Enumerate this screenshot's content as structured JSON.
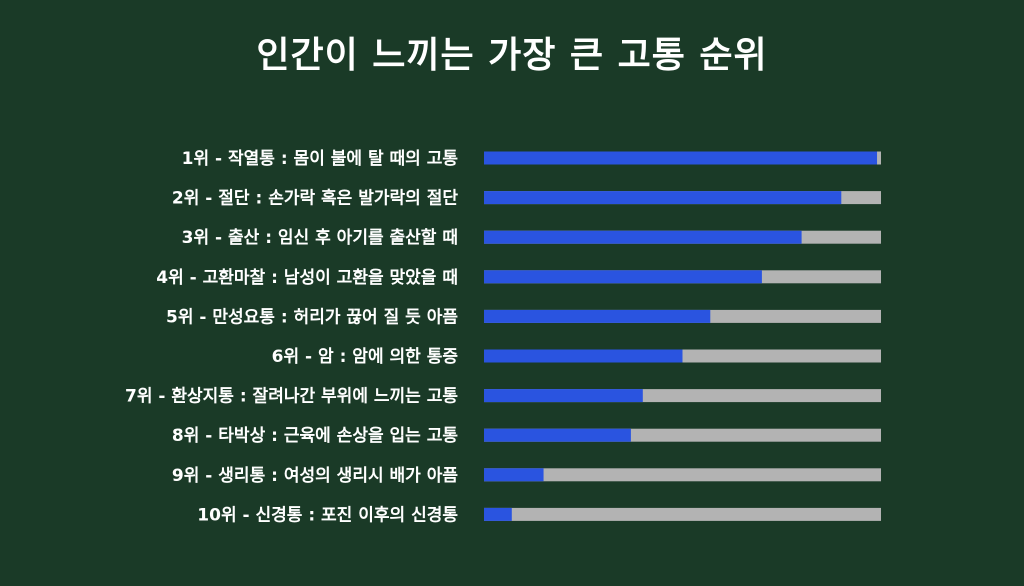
{
  "chart_data": {
    "type": "bar",
    "orientation": "horizontal",
    "title": "인간이 느끼는 가장 큰 고통 순위",
    "xlim": [
      0,
      100
    ],
    "grid": false,
    "categories": [
      "1위 - 작열통 : 몸이 불에 탈 때의 고통",
      "2위 - 절단 : 손가락 혹은 발가락의 절단",
      "3위 - 출산 : 임신 후 아기를 출산할 때",
      "4위 - 고환마찰 : 남성이 고환을 맞았을 때",
      "5위 - 만성요통 : 허리가 끊어 질 듯 아픔",
      "6위 - 암 : 암에 의한 통증",
      "7위 - 환상지통 : 잘려나간 부위에 느끼는 고통",
      "8위 - 타박상 : 근육에 손상을 입는 고통",
      "9위 - 생리통 : 여성의 생리시 배가 아픔",
      "10위 - 신경통 : 포진 이후의 신경통"
    ],
    "values": [
      99,
      90,
      80,
      70,
      57,
      50,
      40,
      37,
      15,
      7
    ]
  },
  "colors": {
    "background": "#1a3a27",
    "bar_fill": "#2a54e0",
    "bar_track": "#b3b3b3",
    "text": "#ffffff"
  }
}
